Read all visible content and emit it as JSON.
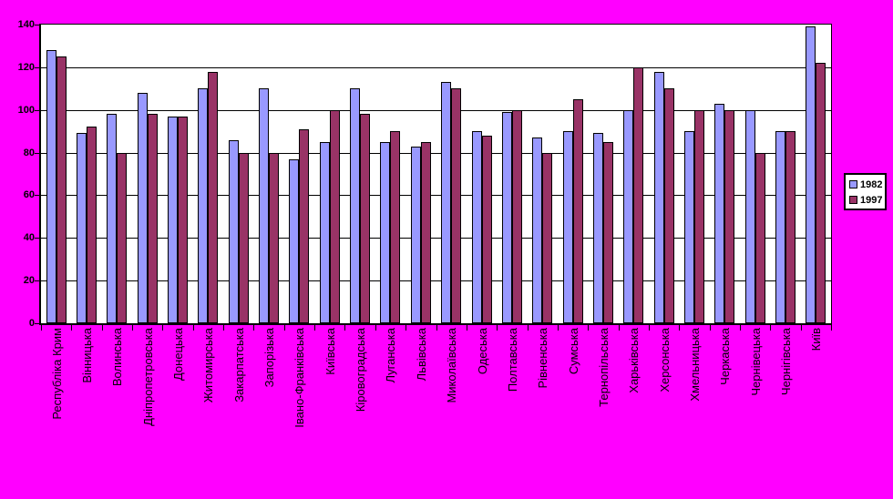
{
  "chart_data": {
    "type": "bar",
    "title": "",
    "xlabel": "",
    "ylabel": "",
    "categories": [
      "Республіка Крим",
      "Вінницька",
      "Волинська",
      "Дніпропетровська",
      "Донецька",
      "Житомирська",
      "Закарпатська",
      "Запорізька",
      "Івано-Франківська",
      "Київська",
      "Кіровоградська",
      "Луганська",
      "Львівська",
      "Миколаївська",
      "Одеська",
      "Полтавська",
      "Рівненська",
      "Сумська",
      "Тернопільська",
      "Харьківська",
      "Херсонська",
      "Хмельницька",
      "Черкаська",
      "Чернівецька",
      "Чернігівська",
      "Київ"
    ],
    "series": [
      {
        "name": "1982",
        "color": "#9999FF",
        "values": [
          128,
          89,
          98,
          108,
          97,
          110,
          86,
          110,
          77,
          85,
          110,
          85,
          83,
          113,
          90,
          99,
          87,
          90,
          89,
          100,
          118,
          90,
          103,
          100,
          90,
          139
        ]
      },
      {
        "name": "1997",
        "color": "#993366",
        "values": [
          125,
          92,
          80,
          98,
          97,
          118,
          80,
          80,
          91,
          100,
          98,
          90,
          85,
          110,
          88,
          100,
          80,
          105,
          85,
          120,
          110,
          100,
          100,
          80,
          90,
          122
        ]
      }
    ],
    "ylim": [
      0,
      140
    ],
    "yticks": [
      0,
      20,
      40,
      60,
      80,
      100,
      120,
      140
    ],
    "grid": true,
    "legend_position": "right",
    "colors": {
      "page_background": "#FF00FF",
      "plot_background": "#FFFFFF",
      "axis": "#000000",
      "gridline": "#000000",
      "text": "#000000"
    }
  }
}
